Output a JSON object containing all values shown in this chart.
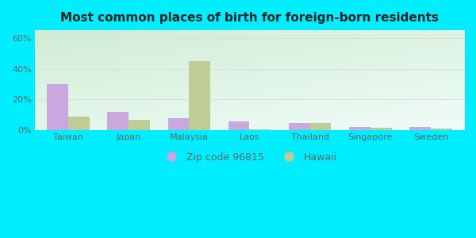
{
  "title": "Most common places of birth for foreign-born residents",
  "categories": [
    "Taiwan",
    "Japan",
    "Malaysia",
    "Laos",
    "Thailand",
    "Singapore",
    "Sweden"
  ],
  "zip_values": [
    30,
    12,
    8,
    6,
    5,
    2,
    2
  ],
  "hawaii_values": [
    9,
    7,
    45,
    0.5,
    4.5,
    1.5,
    1
  ],
  "zip_color": "#c9a8e0",
  "hawaii_color": "#bfcc96",
  "bar_width": 0.35,
  "ylim": [
    0,
    65
  ],
  "yticks": [
    0,
    20,
    40,
    60
  ],
  "ytick_labels": [
    "0%",
    "20%",
    "40%",
    "60%"
  ],
  "background_outer": "#00eeff",
  "background_inner_tl": "#d8f0e8",
  "background_inner_tr": "#e8f8f5",
  "background_inner_br": "#f5fcfc",
  "grid_color": "#dddddd",
  "title_fontsize": 11,
  "legend_label_zip": "Zip code 96815",
  "legend_label_hawaii": "Hawaii",
  "axis_label_color": "#666666",
  "title_color": "#222222"
}
